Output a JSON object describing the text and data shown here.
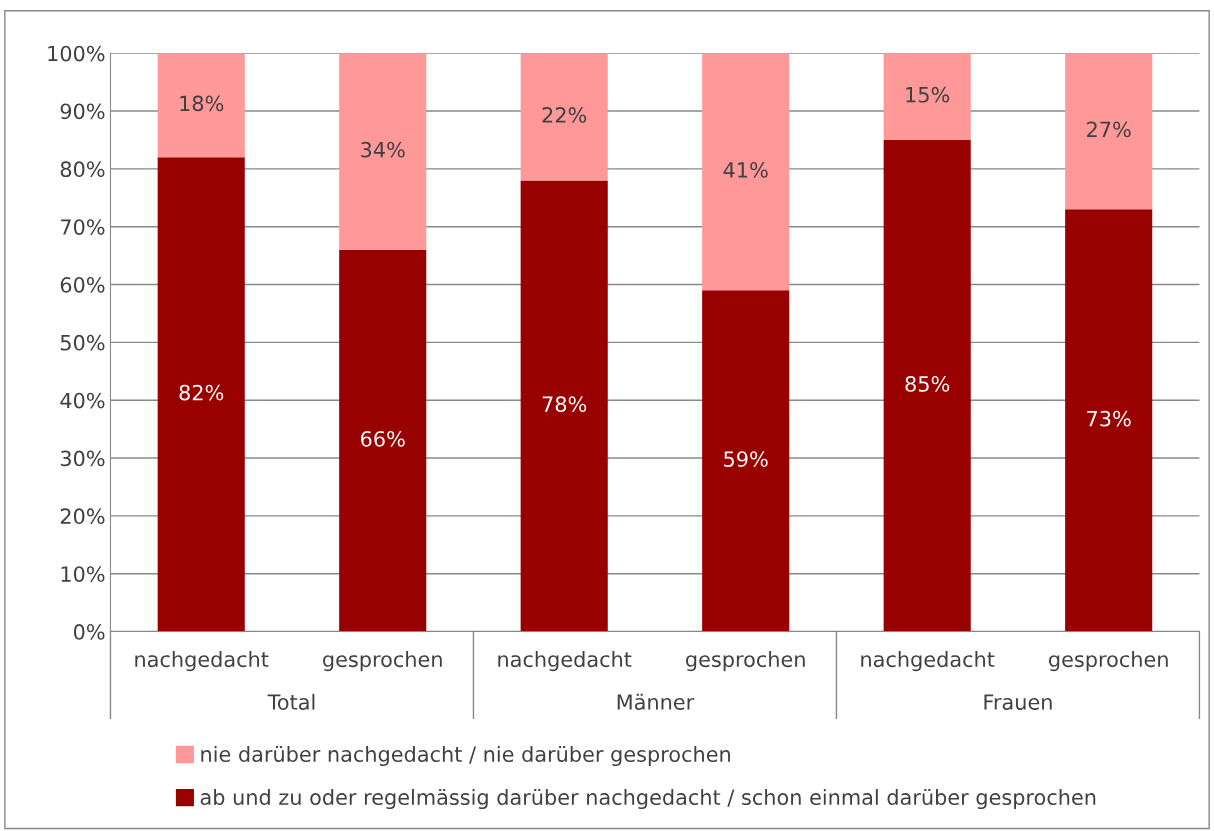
{
  "chart_data": {
    "type": "bar",
    "stacked": true,
    "categories": [
      "nachgedacht",
      "gesprochen",
      "nachgedacht",
      "gesprochen",
      "nachgedacht",
      "gesprochen"
    ],
    "series": [
      {
        "name": "ab und zu oder regelmässig darüber nachgedacht / schon einmal darüber gesprochen",
        "color": "#990000",
        "values": [
          82,
          66,
          78,
          59,
          85,
          73
        ],
        "value_labels": [
          "82%",
          "66%",
          "78%",
          "59%",
          "85%",
          "73%"
        ]
      },
      {
        "name": "nie darüber nachgedacht / nie darüber gesprochen",
        "color": "#ff9999",
        "values": [
          18,
          34,
          22,
          41,
          15,
          27
        ],
        "value_labels": [
          "18%",
          "34%",
          "22%",
          "41%",
          "15%",
          "27%"
        ]
      }
    ],
    "annotations": [
      "Total",
      "Männer",
      "Frauen"
    ],
    "ylim": [
      0,
      100
    ],
    "yticks": [
      {
        "value": 0,
        "label": "0%"
      },
      {
        "value": 10,
        "label": "10%"
      },
      {
        "value": 20,
        "label": "20%"
      },
      {
        "value": 30,
        "label": "30%"
      },
      {
        "value": 40,
        "label": "40%"
      },
      {
        "value": 50,
        "label": "50%"
      },
      {
        "value": 60,
        "label": "60%"
      },
      {
        "value": 70,
        "label": "70%"
      },
      {
        "value": 80,
        "label": "80%"
      },
      {
        "value": 90,
        "label": "90%"
      },
      {
        "value": 100,
        "label": "100%"
      }
    ],
    "grid": "y",
    "legend": "bottom"
  }
}
